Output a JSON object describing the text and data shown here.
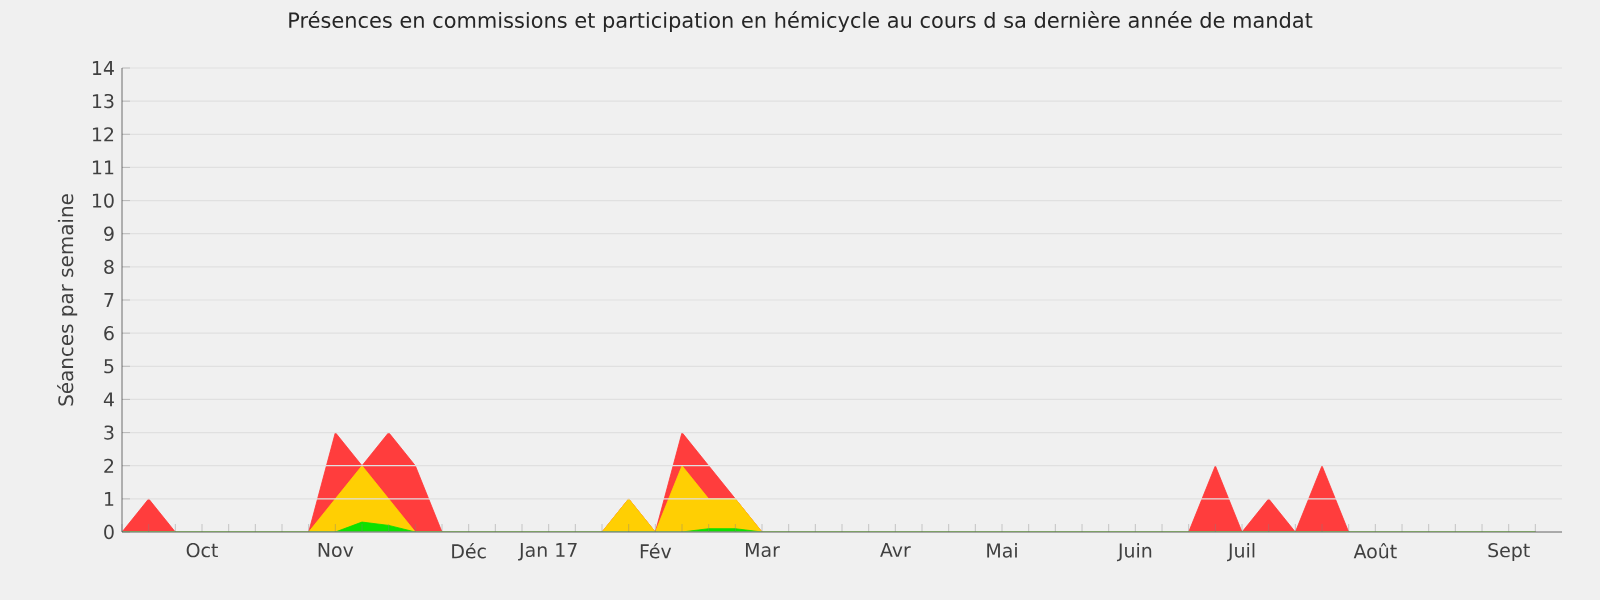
{
  "chart_data": {
    "type": "area",
    "title": "Présences en commissions et participation en hémicycle au cours d sa dernière année de mandat",
    "ylabel": "Séances par semaine",
    "categories": [
      null,
      null,
      null,
      "Oct",
      null,
      null,
      null,
      null,
      "Nov",
      null,
      null,
      null,
      null,
      "Déc",
      null,
      null,
      "Jan 17",
      null,
      null,
      null,
      "Fév",
      null,
      null,
      null,
      "Mar",
      null,
      null,
      null,
      null,
      "Avr",
      null,
      null,
      null,
      "Mai",
      null,
      null,
      null,
      null,
      "Juin",
      null,
      null,
      null,
      "Juil",
      null,
      null,
      null,
      null,
      "Août",
      null,
      null,
      null,
      null,
      "Sept",
      null
    ],
    "series": [
      {
        "color": "#ff3333",
        "values": [
          0,
          1,
          0,
          0,
          0,
          0,
          0,
          0,
          3,
          2,
          3,
          2,
          0,
          0,
          0,
          0,
          0,
          0,
          0,
          1,
          0,
          3,
          2,
          1,
          0,
          0,
          0,
          0,
          0,
          0,
          0,
          0,
          0,
          0,
          0,
          0,
          0,
          0,
          0,
          0,
          0,
          2,
          0,
          1,
          0,
          2,
          0,
          0,
          0,
          0,
          0,
          0,
          0,
          0
        ]
      },
      {
        "color": "#ffd700",
        "values": [
          0,
          0,
          0,
          0,
          0,
          0,
          0,
          0,
          1,
          2,
          1,
          0,
          0,
          0,
          0,
          0,
          0,
          0,
          0,
          1,
          0,
          2,
          1,
          1,
          0,
          0,
          0,
          0,
          0,
          0,
          0,
          0,
          0,
          0,
          0,
          0,
          0,
          0,
          0,
          0,
          0,
          0,
          0,
          0,
          0,
          0,
          0,
          0,
          0,
          0,
          0,
          0,
          0,
          0
        ]
      },
      {
        "color": "#00e000",
        "values": [
          0,
          0,
          0,
          0,
          0,
          0,
          0,
          0,
          0,
          0.3,
          0.2,
          0,
          0,
          0,
          0,
          0,
          0,
          0,
          0,
          0,
          0,
          0,
          0.1,
          0.1,
          0,
          0,
          0,
          0,
          0,
          0,
          0,
          0,
          0,
          0,
          0,
          0,
          0,
          0,
          0,
          0,
          0,
          0,
          0,
          0,
          0,
          0,
          0,
          0,
          0,
          0,
          0,
          0,
          0,
          0
        ]
      }
    ],
    "ylim": [
      0,
      14
    ],
    "yticks": [
      0,
      1,
      2,
      3,
      4,
      5,
      6,
      7,
      8,
      9,
      10,
      11,
      12,
      13,
      14
    ],
    "grid": "y"
  }
}
